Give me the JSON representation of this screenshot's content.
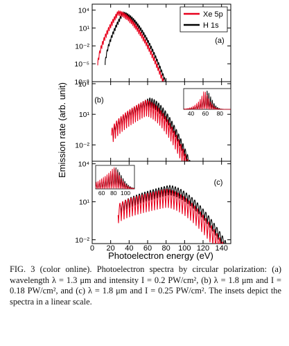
{
  "chart_data": {
    "type": "line",
    "ylabel": "Emission rate (arb. unit)",
    "xlabel": "Photoelectron energy (eV)",
    "x_ticks": [
      0,
      20,
      40,
      60,
      80,
      100,
      120,
      140
    ],
    "xlim": [
      0,
      150
    ],
    "log_scale_y": true,
    "legend": {
      "placement": "top-right",
      "entries": [
        {
          "name": "Xe 5p",
          "color": "#e8001c"
        },
        {
          "name": "H 1s",
          "color": "#000000"
        }
      ]
    },
    "panels": [
      {
        "label": "(a)",
        "y_tick_labels": [
          "10⁴",
          "10¹",
          "10⁻²",
          "10⁻⁵",
          "10⁻⁸"
        ],
        "y_tick_exponents": [
          4,
          1,
          -2,
          -5,
          -8
        ],
        "ylim_exp": [
          -8,
          5
        ],
        "series": [
          {
            "name": "Xe 5p",
            "onset": 6,
            "peak": 28,
            "peak_exp": 3.9,
            "cutoff": 78,
            "end_exp": -8,
            "spacing": 1.6,
            "depth": 0.9
          },
          {
            "name": "H 1s",
            "onset": 14,
            "peak": 33,
            "peak_exp": 3.7,
            "cutoff": 80,
            "end_exp": -8,
            "spacing": 1.6,
            "depth": 0.7
          }
        ]
      },
      {
        "label": "(b)",
        "y_tick_labels": [
          "10⁴",
          "10¹",
          "10⁻²"
        ],
        "y_tick_exponents": [
          4,
          1,
          -2
        ],
        "ylim_exp": [
          -3.6,
          4.2
        ],
        "series": [
          {
            "name": "Xe 5p",
            "onset": 21,
            "peak": 58,
            "peak_exp": 2.4,
            "cutoff": 104,
            "end_exp": -3.6,
            "spacing": 2.4,
            "depth": 1.6
          },
          {
            "name": "H 1s",
            "onset": 23,
            "peak": 62,
            "peak_exp": 2.6,
            "cutoff": 106,
            "end_exp": -3.6,
            "spacing": 2.4,
            "depth": 1.0
          }
        ],
        "inset": {
          "x_tick_labels": [
            "40",
            "60",
            "80"
          ],
          "x_ticks": [
            40,
            60,
            80
          ],
          "xlim": [
            30,
            95
          ]
        }
      },
      {
        "label": "(c)",
        "y_tick_labels": [
          "10⁴",
          "10¹",
          "10⁻²"
        ],
        "y_tick_exponents": [
          4,
          1,
          -2
        ],
        "ylim_exp": [
          -2.3,
          4.2
        ],
        "series": [
          {
            "name": "Xe 5p",
            "onset": 28,
            "peak": 80,
            "peak_exp": 2.0,
            "cutoff": 142,
            "end_exp": -2.3,
            "spacing": 3.0,
            "depth": 1.5
          },
          {
            "name": "H 1s",
            "onset": 30,
            "peak": 83,
            "peak_exp": 2.3,
            "cutoff": 146,
            "end_exp": -2.3,
            "spacing": 3.0,
            "depth": 0.8
          }
        ],
        "inset": {
          "x_tick_labels": [
            "60",
            "80",
            "100"
          ],
          "x_ticks": [
            60,
            80,
            100
          ],
          "xlim": [
            50,
            115
          ]
        }
      }
    ]
  },
  "caption": {
    "label": "FIG. 3 (color online).",
    "text": "Photoelectron spectra by circular polarization: (a) wavelength λ = 1.3 μm and intensity I = 0.2 PW/cm², (b) λ = 1.8 μm and I = 0.18 PW/cm², and (c) λ = 1.8 μm and I = 0.25 PW/cm². The insets depict the spectra in a linear scale."
  }
}
